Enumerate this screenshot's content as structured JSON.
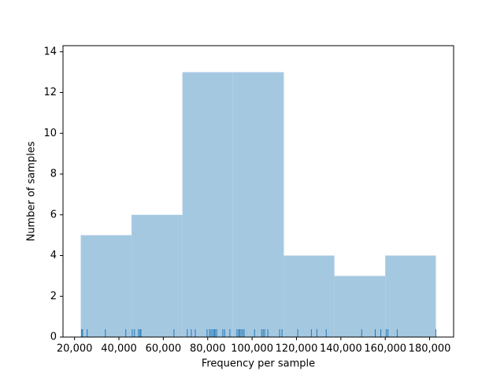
{
  "chart_data": {
    "type": "histogram",
    "xlabel": "Frequency per sample",
    "ylabel": "Number of samples",
    "bins": [
      22800,
      45700,
      68600,
      91400,
      114300,
      137100,
      160000,
      182800
    ],
    "counts": [
      5,
      6,
      13,
      13,
      4,
      3,
      4
    ],
    "color": "#a5c8e1",
    "rug": [
      23200,
      23600,
      25700,
      33900,
      43100,
      46000,
      47000,
      48800,
      49500,
      49900,
      64800,
      70800,
      72600,
      74400,
      79700,
      80800,
      81500,
      82200,
      82900,
      83300,
      84000,
      86800,
      87600,
      90000,
      93200,
      94000,
      94300,
      95000,
      95700,
      96400,
      101100,
      104300,
      105000,
      105700,
      107100,
      112400,
      113500,
      120600,
      126700,
      129200,
      133400,
      149400,
      155500,
      158000,
      160400,
      161200,
      165400,
      182800
    ],
    "rug_color": "#1f77b4",
    "xlim": [
      14800,
      190800
    ],
    "ylim": [
      0,
      14.3
    ],
    "xticks": [
      {
        "value": 20000,
        "label": "20,000"
      },
      {
        "value": 40000,
        "label": "40,000"
      },
      {
        "value": 60000,
        "label": "60,000"
      },
      {
        "value": 80000,
        "label": "80,000"
      },
      {
        "value": 100000,
        "label": "100,000"
      },
      {
        "value": 120000,
        "label": "120,000"
      },
      {
        "value": 140000,
        "label": "140,000"
      },
      {
        "value": 160000,
        "label": "160,000"
      },
      {
        "value": 180000,
        "label": "180,000"
      }
    ],
    "yticks": [
      0,
      2,
      4,
      6,
      8,
      10,
      12,
      14
    ]
  }
}
